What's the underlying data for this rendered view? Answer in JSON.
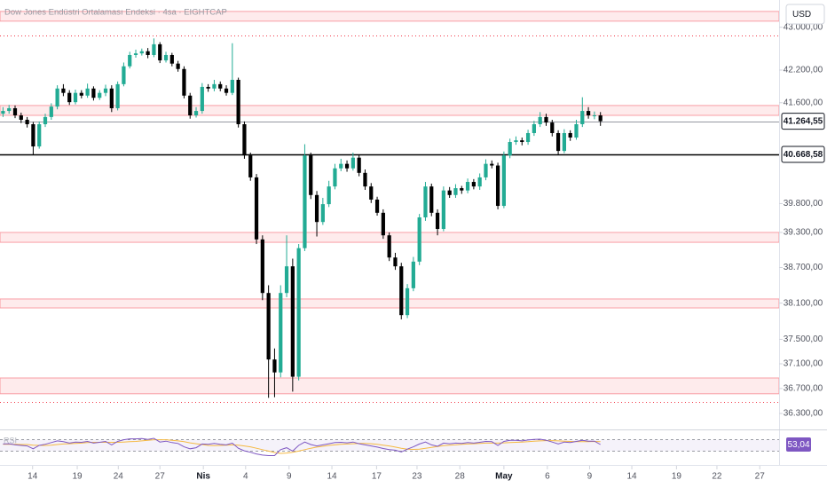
{
  "chart_data": {
    "type": "candlestick",
    "title": "Dow Jones Endüstri Ortalaması Endeksi · 4sa · EIGHTCAP",
    "currency": "USD",
    "log_scale": true,
    "grid": false,
    "up_color": "#22ab94",
    "down_color": "#000000",
    "xlim": [
      -0.5,
      128.6
    ],
    "xticks": [
      {
        "value": 4.9,
        "label": "14"
      },
      {
        "value": 12.3,
        "label": "19"
      },
      {
        "value": 19.1,
        "label": "24"
      },
      {
        "value": 26.0,
        "label": "27"
      },
      {
        "value": 33.2,
        "label": "Nis"
      },
      {
        "value": 40.2,
        "label": "4"
      },
      {
        "value": 47.4,
        "label": "9"
      },
      {
        "value": 54.5,
        "label": "14"
      },
      {
        "value": 61.9,
        "label": "17"
      },
      {
        "value": 68.6,
        "label": "23"
      },
      {
        "value": 75.7,
        "label": "28"
      },
      {
        "value": 83.0,
        "label": "May"
      },
      {
        "value": 90.2,
        "label": "6"
      },
      {
        "value": 97.2,
        "label": "9"
      },
      {
        "value": 104.2,
        "label": "14"
      },
      {
        "value": 111.6,
        "label": "19"
      },
      {
        "value": 118.3,
        "label": "22"
      },
      {
        "value": 125.4,
        "label": "27"
      }
    ],
    "ylim": [
      36075,
      43517
    ],
    "yticks": [
      {
        "value": 43000,
        "label": "43.000,00"
      },
      {
        "value": 42200,
        "label": "42.200,00"
      },
      {
        "value": 41600,
        "label": "41.600,00"
      },
      {
        "value": 39800,
        "label": "39.800,00"
      },
      {
        "value": 39300,
        "label": "39.300,00"
      },
      {
        "value": 38700,
        "label": "38.700,00"
      },
      {
        "value": 38100,
        "label": "38.100,00"
      },
      {
        "value": 37500,
        "label": "37.500,00"
      },
      {
        "value": 37100,
        "label": "37.100,00"
      },
      {
        "value": 36700,
        "label": "36.700,00"
      },
      {
        "value": 36300,
        "label": "36.300,00"
      }
    ],
    "zones": [
      [
        43115,
        43300
      ],
      [
        41370,
        41550
      ],
      [
        39130,
        39300
      ],
      [
        38020,
        38170
      ],
      [
        36615,
        36870
      ]
    ],
    "zone_color": "#f23645",
    "dotted_lines": [
      42845,
      36485
    ],
    "levels": [
      {
        "value": 41264.55,
        "label": "41.264,55",
        "color": "#9598a1"
      },
      {
        "value": 40668.58,
        "label": "40.668,58",
        "color": "#000000"
      }
    ],
    "open": [
      41400,
      41450,
      41500,
      41370,
      41290,
      41210,
      40810,
      41210,
      41340,
      41530,
      41860,
      41780,
      41610,
      41780,
      41730,
      41860,
      41690,
      41780,
      41860,
      41500,
      41940,
      42270,
      42480,
      42510,
      42550,
      42480,
      42680,
      42380,
      42480,
      42320,
      42220,
      41730,
      41370,
      41450,
      41890,
      41860,
      41940,
      41860,
      41780,
      42020,
      41210,
      40650,
      40260,
      39180,
      38270,
      37170,
      36960,
      38270,
      38720,
      36890,
      39030,
      40650,
      39950,
      39480,
      39790,
      40100,
      40420,
      40500,
      40420,
      40610,
      40340,
      40100,
      39870,
      39640,
      39250,
      38870,
      38720,
      37900,
      38350,
      38800,
      39560,
      40100,
      39640,
      39360,
      40030,
      39950,
      40070,
      40030,
      40180,
      40100,
      40260,
      40500,
      40470,
      39760,
      40650,
      40890,
      40920,
      40890,
      41050,
      41210,
      41340,
      41240,
      41050,
      40730,
      41050,
      40970,
      41210,
      41450,
      41370,
      41370
    ],
    "high": [
      41520,
      41560,
      41550,
      41420,
      41340,
      41250,
      41260,
      41400,
      41590,
      41920,
      41940,
      41830,
      41840,
      41830,
      41950,
      41900,
      41830,
      41930,
      41920,
      41990,
      42340,
      42540,
      42580,
      42600,
      42610,
      42790,
      42720,
      42540,
      42520,
      42370,
      42270,
      41780,
      41520,
      41960,
      41940,
      42020,
      41990,
      41920,
      42700,
      42060,
      41260,
      40700,
      40320,
      39250,
      38400,
      37350,
      38400,
      39250,
      38850,
      39100,
      40850,
      40700,
      40020,
      39900,
      40200,
      40500,
      40590,
      40560,
      40700,
      40660,
      40400,
      40160,
      39920,
      39700,
      39300,
      38950,
      38780,
      38420,
      38880,
      39620,
      40180,
      40150,
      39700,
      40100,
      40090,
      40140,
      40110,
      40240,
      40230,
      40330,
      40580,
      40560,
      40520,
      40720,
      40950,
      40990,
      40970,
      41110,
      41270,
      41430,
      41400,
      41290,
      41100,
      41120,
      41100,
      41290,
      41700,
      41520,
      41440,
      41430
    ],
    "low": [
      41340,
      41400,
      41320,
      41230,
      41150,
      40660,
      40770,
      41160,
      41290,
      41480,
      41720,
      41560,
      41570,
      41680,
      41690,
      41640,
      41650,
      41720,
      41430,
      41460,
      41900,
      42230,
      42430,
      42470,
      42420,
      42440,
      42330,
      42340,
      42270,
      42170,
      41680,
      41310,
      41330,
      41400,
      41800,
      41810,
      41810,
      41730,
      41740,
      41150,
      40590,
      40200,
      39100,
      38150,
      36550,
      36560,
      36880,
      38200,
      36650,
      36830,
      38980,
      39880,
      39230,
      39430,
      39740,
      40050,
      40370,
      40360,
      40380,
      40280,
      40040,
      39810,
      39590,
      39190,
      38810,
      38660,
      37830,
      37850,
      38300,
      38740,
      39500,
      39580,
      39250,
      39320,
      39900,
      39900,
      39970,
      39980,
      40050,
      40040,
      40210,
      40420,
      39700,
      39720,
      40600,
      40840,
      40830,
      40840,
      41000,
      41160,
      41180,
      40990,
      40660,
      40690,
      40910,
      40930,
      41160,
      41310,
      41300,
      41180
    ],
    "close": [
      41450,
      41500,
      41370,
      41290,
      41210,
      40810,
      41210,
      41340,
      41530,
      41860,
      41780,
      41610,
      41780,
      41730,
      41860,
      41690,
      41780,
      41860,
      41500,
      41940,
      42270,
      42480,
      42510,
      42550,
      42480,
      42680,
      42380,
      42480,
      42320,
      42220,
      41730,
      41370,
      41450,
      41890,
      41860,
      41940,
      41860,
      41780,
      42020,
      41210,
      40650,
      40260,
      39180,
      38270,
      37170,
      36960,
      38270,
      38720,
      36890,
      39030,
      40650,
      39950,
      39480,
      39790,
      40100,
      40420,
      40500,
      40420,
      40610,
      40340,
      40100,
      39870,
      39640,
      39250,
      38870,
      38720,
      37900,
      38350,
      38800,
      39560,
      40100,
      39640,
      39360,
      40030,
      39950,
      40070,
      40030,
      40180,
      40100,
      40260,
      40500,
      40470,
      39760,
      40650,
      40890,
      40920,
      40890,
      41050,
      41210,
      41340,
      41240,
      41050,
      40730,
      41050,
      40970,
      41210,
      41450,
      41370,
      41370,
      41264.55
    ],
    "rsi": {
      "name": "RSI",
      "ylim": [
        0,
        100
      ],
      "bands": [
        30,
        70
      ],
      "color": "#7e57c2",
      "ma_color": "#f5b942",
      "values": [
        55,
        56,
        52,
        50,
        48,
        38,
        50,
        54,
        60,
        66,
        63,
        58,
        62,
        61,
        64,
        58,
        61,
        64,
        52,
        64,
        70,
        73,
        73,
        74,
        71,
        75,
        62,
        65,
        60,
        57,
        45,
        38,
        42,
        55,
        54,
        57,
        54,
        52,
        58,
        40,
        31,
        26,
        20,
        16,
        14,
        14,
        35,
        42,
        30,
        50,
        62,
        53,
        48,
        52,
        56,
        60,
        61,
        59,
        62,
        56,
        52,
        48,
        44,
        39,
        35,
        33,
        27,
        37,
        45,
        55,
        62,
        52,
        47,
        58,
        56,
        58,
        57,
        60,
        58,
        61,
        64,
        63,
        50,
        64,
        68,
        68,
        66,
        69,
        71,
        72,
        68,
        62,
        55,
        62,
        60,
        64,
        68,
        65,
        65,
        53.04
      ],
      "ma": [
        54,
        54,
        54,
        53,
        53,
        51,
        50,
        50,
        51,
        53,
        55,
        56,
        57,
        58,
        60,
        61,
        61,
        61,
        61,
        61,
        62,
        63,
        64,
        66,
        68,
        70,
        70,
        70,
        68,
        66,
        63,
        59,
        56,
        53,
        50,
        49,
        50,
        51,
        52,
        51,
        48,
        45,
        40,
        35,
        30,
        25,
        22,
        23,
        26,
        30,
        35,
        40,
        44,
        47,
        50,
        52,
        54,
        55,
        56,
        57,
        57,
        56,
        54,
        51,
        48,
        44,
        40,
        37,
        36,
        37,
        40,
        43,
        46,
        49,
        51,
        52,
        54,
        55,
        56,
        57,
        58,
        58,
        58,
        59,
        60,
        61,
        62,
        63,
        65,
        66,
        67,
        67,
        66,
        65,
        64,
        63,
        63,
        63,
        64,
        63
      ],
      "last_value": {
        "value": 53.04,
        "label": "53,04"
      }
    }
  }
}
